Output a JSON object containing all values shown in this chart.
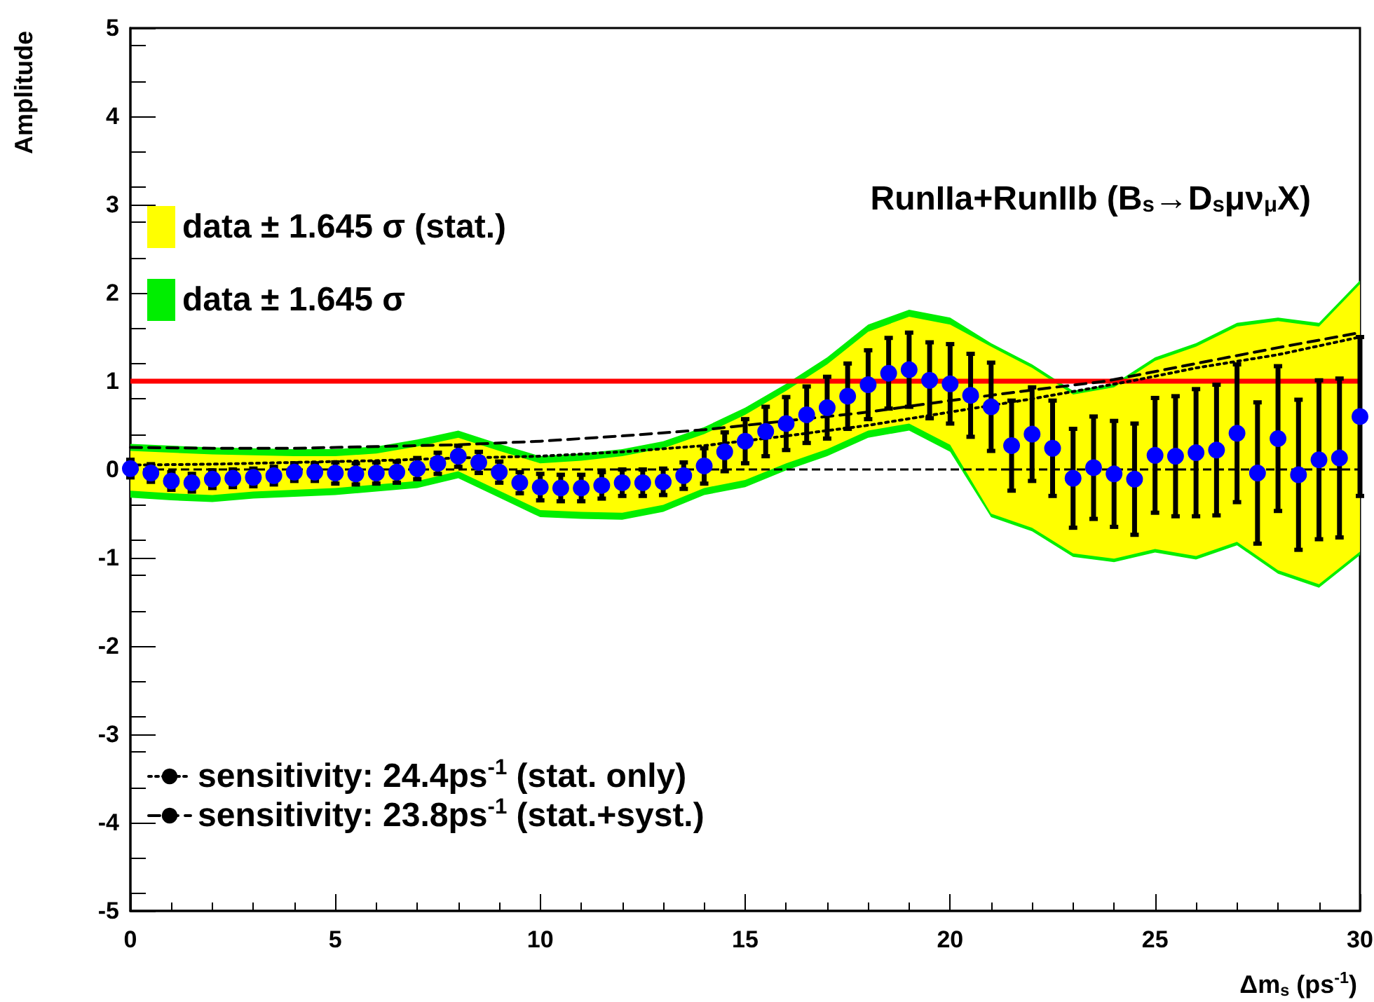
{
  "chart_data": {
    "type": "scatter",
    "title": "RunIIa+RunIIb (B$_{s}$→D$_{s}$μν$_{μ}$X)",
    "xlabel": "Δm$_{s}$ (ps$^{-1}$)",
    "ylabel": "Amplitude",
    "xlim": [
      0,
      30
    ],
    "xticks": [
      0,
      5,
      10,
      15,
      20,
      25,
      30
    ],
    "ylim": [
      -5,
      5
    ],
    "yticks": [
      -5,
      -4,
      -3,
      -2,
      -1,
      0,
      1,
      2,
      3,
      4,
      5
    ],
    "grid": false,
    "legend": "left",
    "marker": "circle",
    "series": [
      {
        "type": "area",
        "name": "data ± 1.645 σ",
        "color": "#00ee00",
        "x": [
          0,
          1,
          2,
          3,
          4,
          5,
          6,
          7,
          8,
          9,
          10,
          11,
          12,
          13,
          14,
          15,
          16,
          17,
          18,
          19,
          20,
          21,
          22,
          23,
          24,
          25,
          26,
          27,
          28,
          29,
          30
        ],
        "values": [
          null,
          null,
          null,
          null,
          null,
          null,
          null,
          null,
          null,
          null,
          null,
          null,
          null,
          null,
          null,
          null,
          null,
          null,
          null,
          null,
          null,
          null,
          null,
          null,
          null,
          null,
          null,
          null,
          null,
          null,
          null
        ],
        "upper": [
          0.29,
          0.27,
          0.25,
          0.24,
          0.23,
          0.23,
          0.26,
          0.34,
          0.44,
          0.29,
          0.15,
          0.18,
          0.23,
          0.32,
          0.48,
          0.7,
          0.97,
          1.27,
          1.64,
          1.81,
          1.72,
          1.43,
          1.19,
          0.89,
          0.97,
          1.27,
          1.43,
          1.66,
          1.72,
          1.66,
          2.14
        ],
        "lower": [
          -0.32,
          -0.35,
          -0.37,
          -0.33,
          -0.31,
          -0.29,
          -0.25,
          -0.21,
          -0.1,
          -0.32,
          -0.54,
          -0.56,
          -0.57,
          -0.48,
          -0.29,
          -0.2,
          -0.01,
          0.15,
          0.36,
          0.44,
          0.2,
          -0.54,
          -0.7,
          -0.99,
          -1.05,
          -0.94,
          -1.02,
          -0.86,
          -1.18,
          -1.34,
          -0.97
        ]
      },
      {
        "type": "area",
        "name": "data ± 1.645 σ (stat.)",
        "color": "#ffff00",
        "x": [
          0,
          1,
          2,
          3,
          4,
          5,
          6,
          7,
          8,
          9,
          10,
          11,
          12,
          13,
          14,
          15,
          16,
          17,
          18,
          19,
          20,
          21,
          22,
          23,
          24,
          25,
          26,
          27,
          28,
          29,
          30
        ],
        "values": [
          null,
          null,
          null,
          null,
          null,
          null,
          null,
          null,
          null,
          null,
          null,
          null,
          null,
          null,
          null,
          null,
          null,
          null,
          null,
          null,
          null,
          null,
          null,
          null,
          null,
          null,
          null,
          null,
          null,
          null,
          null
        ],
        "upper": [
          0.21,
          0.19,
          0.17,
          0.16,
          0.15,
          0.15,
          0.18,
          0.26,
          0.36,
          0.21,
          0.07,
          0.1,
          0.15,
          0.24,
          0.4,
          0.62,
          0.89,
          1.19,
          1.56,
          1.73,
          1.64,
          1.39,
          1.15,
          0.85,
          0.93,
          1.23,
          1.39,
          1.62,
          1.68,
          1.62,
          2.1
        ],
        "lower": [
          -0.24,
          -0.27,
          -0.29,
          -0.25,
          -0.23,
          -0.21,
          -0.17,
          -0.13,
          -0.02,
          -0.24,
          -0.46,
          -0.48,
          -0.49,
          -0.4,
          -0.21,
          -0.12,
          0.07,
          0.23,
          0.44,
          0.52,
          0.28,
          -0.5,
          -0.66,
          -0.95,
          -1.01,
          -0.9,
          -0.98,
          -0.82,
          -1.14,
          -1.3,
          -0.93
        ]
      },
      {
        "type": "line",
        "name": "sensitivity: 24.4ps$^{-1}$ (stat. only)",
        "color": "#000000",
        "line_style": "dotted",
        "marker": "none",
        "x": [
          0,
          2,
          4,
          6,
          8,
          10,
          12,
          14,
          16,
          18,
          20,
          22,
          24.4,
          26,
          28,
          30
        ],
        "values": [
          0.05,
          0.06,
          0.08,
          0.1,
          0.13,
          0.15,
          0.2,
          0.27,
          0.38,
          0.5,
          0.65,
          0.8,
          1,
          1.15,
          1.3,
          1.5
        ]
      },
      {
        "type": "line",
        "name": "sensitivity: 23.8ps$^{-1}$ (stat.+syst.)",
        "color": "#000000",
        "line_style": "dashed",
        "marker": "none",
        "x": [
          0,
          2,
          4,
          6,
          8,
          10,
          12,
          14,
          16,
          18,
          20,
          22,
          23.8,
          26,
          28,
          30
        ],
        "values": [
          0.25,
          0.24,
          0.24,
          0.26,
          0.28,
          0.32,
          0.38,
          0.45,
          0.55,
          0.65,
          0.78,
          0.9,
          1,
          1.2,
          1.38,
          1.55
        ]
      },
      {
        "color": "#0000ff",
        "x": [
          0,
          0.5,
          1,
          1.5,
          2,
          2.5,
          3,
          3.5,
          4,
          4.5,
          5,
          5.5,
          6,
          6.5,
          7,
          7.5,
          8,
          8.5,
          9,
          9.5,
          10,
          10.5,
          11,
          11.5,
          12,
          12.5,
          13,
          13.5,
          14,
          14.5,
          15,
          15.5,
          16,
          16.5,
          17,
          17.5,
          18,
          18.5,
          19,
          19.5,
          20,
          20.5,
          21,
          21.5,
          22,
          22.5,
          23,
          23.5,
          24,
          24.5,
          25,
          25.5,
          26,
          26.5,
          27,
          27.5,
          28,
          28.5,
          29,
          29.5,
          30
        ],
        "values": [
          0.01,
          -0.04,
          -0.13,
          -0.15,
          -0.11,
          -0.1,
          -0.09,
          -0.07,
          -0.03,
          -0.03,
          -0.04,
          -0.05,
          -0.04,
          -0.03,
          0.01,
          0.07,
          0.15,
          0.08,
          -0.03,
          -0.15,
          -0.2,
          -0.21,
          -0.21,
          -0.18,
          -0.15,
          -0.15,
          -0.14,
          -0.07,
          0.04,
          0.2,
          0.32,
          0.43,
          0.52,
          0.62,
          0.7,
          0.83,
          0.96,
          1.09,
          1.13,
          1.01,
          0.97,
          0.84,
          0.71,
          0.27,
          0.4,
          0.24,
          -0.1,
          0.02,
          -0.05,
          -0.11,
          0.16,
          0.15,
          0.19,
          0.22,
          0.41,
          -0.04,
          0.35,
          -0.06,
          0.11,
          0.13,
          0.6
        ],
        "errors": [
          0.1,
          0.1,
          0.1,
          0.1,
          0.1,
          0.1,
          0.1,
          0.1,
          0.1,
          0.1,
          0.12,
          0.12,
          0.12,
          0.12,
          0.12,
          0.12,
          0.12,
          0.12,
          0.12,
          0.12,
          0.15,
          0.15,
          0.15,
          0.15,
          0.15,
          0.15,
          0.15,
          0.15,
          0.2,
          0.22,
          0.25,
          0.28,
          0.3,
          0.32,
          0.35,
          0.37,
          0.39,
          0.4,
          0.42,
          0.43,
          0.45,
          0.47,
          0.5,
          0.51,
          0.53,
          0.54,
          0.56,
          0.58,
          0.6,
          0.63,
          0.65,
          0.68,
          0.72,
          0.74,
          0.78,
          0.8,
          0.82,
          0.85,
          0.9,
          0.9,
          0.9
        ]
      }
    ],
    "ref_lines": [
      {
        "axis": "y",
        "value": 1,
        "color": "#ff0000",
        "line_style": "solid"
      },
      {
        "axis": "y",
        "value": 0,
        "color": "#000000",
        "line_style": "dashed"
      }
    ]
  }
}
